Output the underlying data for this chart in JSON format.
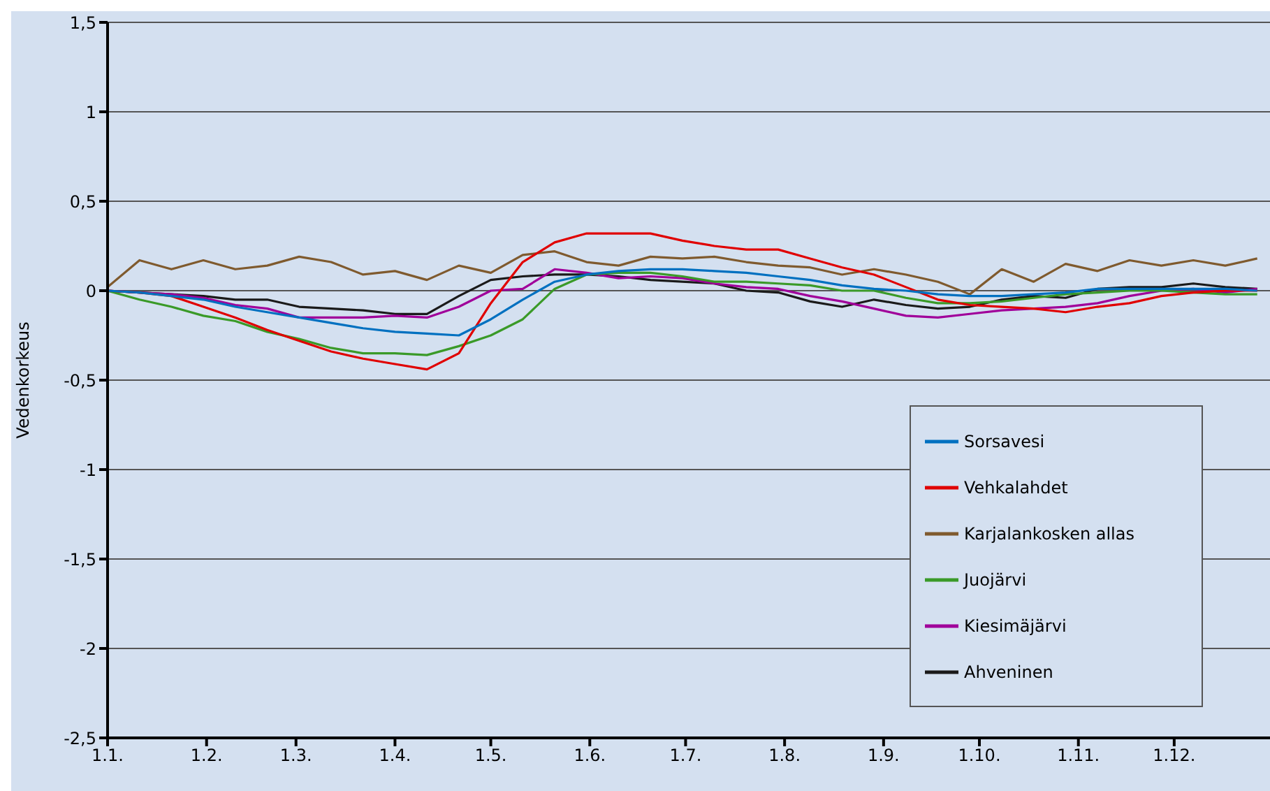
{
  "chart_data": {
    "type": "line",
    "ylabel": "Vedenkorkeus",
    "x": [
      "--01-01",
      "--01-11",
      "--01-21",
      "--01-31",
      "--02-10",
      "--02-20",
      "--03-02",
      "--03-12",
      "--03-22",
      "--04-01",
      "--04-11",
      "--04-21",
      "--05-01",
      "--05-11",
      "--05-21",
      "--05-31",
      "--06-10",
      "--06-20",
      "--06-30",
      "--07-10",
      "--07-20",
      "--07-30",
      "--08-09",
      "--08-19",
      "--08-29",
      "--09-08",
      "--09-18",
      "--09-28",
      "--10-08",
      "--10-18",
      "--10-28",
      "--11-07",
      "--11-17",
      "--11-27",
      "--12-07",
      "--12-17",
      "--12-27"
    ],
    "series": [
      {
        "name": "Sorsavesi",
        "color": "#0070c0",
        "values": [
          0,
          -0.01,
          -0.03,
          -0.05,
          -0.09,
          -0.12,
          -0.15,
          -0.18,
          -0.21,
          -0.23,
          -0.24,
          -0.25,
          -0.16,
          -0.05,
          0.05,
          0.09,
          0.11,
          0.12,
          0.12,
          0.11,
          0.1,
          0.08,
          0.06,
          0.03,
          0.01,
          0,
          -0.02,
          -0.03,
          -0.03,
          -0.02,
          -0.01,
          0.01,
          0.01,
          0.01,
          0.01,
          0.01,
          0
        ]
      },
      {
        "name": "Vehkalahdet",
        "color": "#e00000",
        "values": [
          0,
          -0.01,
          -0.03,
          -0.09,
          -0.15,
          -0.22,
          -0.28,
          -0.34,
          -0.38,
          -0.41,
          -0.44,
          -0.35,
          -0.07,
          0.16,
          0.27,
          0.32,
          0.32,
          0.32,
          0.28,
          0.25,
          0.23,
          0.23,
          0.18,
          0.13,
          0.09,
          0.02,
          -0.05,
          -0.08,
          -0.09,
          -0.1,
          -0.12,
          -0.09,
          -0.07,
          -0.03,
          -0.01,
          0,
          0
        ]
      },
      {
        "name": "Karjalankosken allas",
        "color": "#7f5a2e",
        "values": [
          0.02,
          0.17,
          0.12,
          0.17,
          0.12,
          0.14,
          0.19,
          0.16,
          0.09,
          0.11,
          0.06,
          0.14,
          0.1,
          0.2,
          0.22,
          0.16,
          0.14,
          0.19,
          0.18,
          0.19,
          0.16,
          0.14,
          0.13,
          0.09,
          0.12,
          0.09,
          0.05,
          -0.02,
          0.12,
          0.05,
          0.15,
          0.11,
          0.17,
          0.14,
          0.17,
          0.14,
          0.18
        ]
      },
      {
        "name": "Juojärvi",
        "color": "#3a9a28",
        "values": [
          0,
          -0.05,
          -0.09,
          -0.14,
          -0.17,
          -0.23,
          -0.27,
          -0.32,
          -0.35,
          -0.35,
          -0.36,
          -0.31,
          -0.25,
          -0.16,
          0.01,
          0.09,
          0.1,
          0.1,
          0.08,
          0.05,
          0.05,
          0.04,
          0.03,
          0,
          0,
          -0.04,
          -0.07,
          -0.07,
          -0.06,
          -0.04,
          -0.02,
          -0.01,
          0,
          0,
          -0.01,
          -0.02,
          -0.02
        ]
      },
      {
        "name": "Kiesimäjärvi",
        "color": "#a0009a",
        "values": [
          0,
          -0.01,
          -0.02,
          -0.04,
          -0.08,
          -0.1,
          -0.15,
          -0.15,
          -0.15,
          -0.14,
          -0.15,
          -0.09,
          0,
          0.01,
          0.12,
          0.1,
          0.07,
          0.08,
          0.07,
          0.04,
          0.02,
          0.01,
          -0.03,
          -0.06,
          -0.1,
          -0.14,
          -0.15,
          -0.13,
          -0.11,
          -0.1,
          -0.09,
          -0.07,
          -0.03,
          0,
          0.01,
          -0.01,
          0.01
        ]
      },
      {
        "name": "Ahveninen",
        "color": "#1a1a1a",
        "values": [
          0,
          -0.01,
          -0.02,
          -0.03,
          -0.05,
          -0.05,
          -0.09,
          -0.1,
          -0.11,
          -0.13,
          -0.13,
          -0.03,
          0.06,
          0.08,
          0.09,
          0.09,
          0.08,
          0.06,
          0.05,
          0.04,
          0,
          -0.01,
          -0.06,
          -0.09,
          -0.05,
          -0.08,
          -0.1,
          -0.09,
          -0.05,
          -0.03,
          -0.04,
          0.01,
          0.02,
          0.02,
          0.04,
          0.02,
          0.01
        ]
      }
    ],
    "xlim": [
      "--01-01",
      "--12-31"
    ],
    "xticks": [
      {
        "value": "--01-01",
        "label": "1.1."
      },
      {
        "value": "--02-01",
        "label": "1.2."
      },
      {
        "value": "--03-01",
        "label": "1.3."
      },
      {
        "value": "--04-01",
        "label": "1.4."
      },
      {
        "value": "--05-01",
        "label": "1.5."
      },
      {
        "value": "--06-01",
        "label": "1.6."
      },
      {
        "value": "--07-01",
        "label": "1.7."
      },
      {
        "value": "--08-01",
        "label": "1.8."
      },
      {
        "value": "--09-01",
        "label": "1.9."
      },
      {
        "value": "--10-01",
        "label": "1.10."
      },
      {
        "value": "--11-01",
        "label": "1.11."
      },
      {
        "value": "--12-01",
        "label": "1.12."
      }
    ],
    "ylim": [
      -2.5,
      1.5
    ],
    "yticks": [
      {
        "value": -2.5,
        "label": "-2,5"
      },
      {
        "value": -2,
        "label": "-2"
      },
      {
        "value": -1.5,
        "label": "-1,5"
      },
      {
        "value": -1,
        "label": "-1"
      },
      {
        "value": -0.5,
        "label": "-0,5"
      },
      {
        "value": 0,
        "label": "0"
      },
      {
        "value": 0.5,
        "label": "0,5"
      },
      {
        "value": 1,
        "label": "1"
      },
      {
        "value": 1.5,
        "label": "1,5"
      }
    ],
    "grid": "y",
    "legend": "bottom right",
    "marker": "none",
    "line_style": "solid"
  }
}
